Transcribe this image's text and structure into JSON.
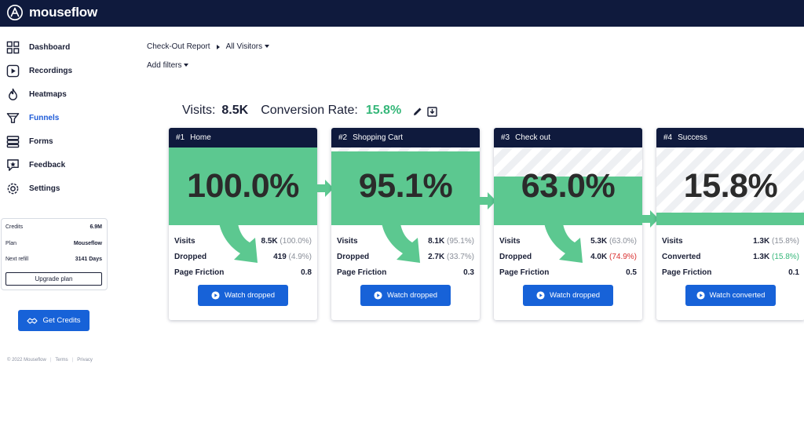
{
  "app": {
    "name": "mouseflow"
  },
  "sidebar": {
    "items": [
      {
        "label": "Dashboard",
        "icon": "dashboard-icon",
        "active": false
      },
      {
        "label": "Recordings",
        "icon": "recordings-icon",
        "active": false
      },
      {
        "label": "Heatmaps",
        "icon": "heatmaps-icon",
        "active": false
      },
      {
        "label": "Funnels",
        "icon": "funnels-icon",
        "active": true
      },
      {
        "label": "Forms",
        "icon": "forms-icon",
        "active": false
      },
      {
        "label": "Feedback",
        "icon": "feedback-icon",
        "active": false
      },
      {
        "label": "Settings",
        "icon": "settings-icon",
        "active": false
      }
    ],
    "credits": {
      "rows": [
        {
          "label": "Credits",
          "value": "6.9M"
        },
        {
          "label": "Plan",
          "value": "Mouseflow"
        },
        {
          "label": "Next refill",
          "value": "3141 Days"
        }
      ],
      "upgrade_label": "Upgrade plan"
    },
    "get_credits_label": "Get Credits",
    "footer": {
      "copyright": "© 2022 Mouseflow",
      "terms": "Terms",
      "privacy": "Privacy"
    }
  },
  "header": {
    "report": "Check-Out Report",
    "segment": "All Visitors",
    "add_filters": "Add filters"
  },
  "summary": {
    "visits_label": "Visits:",
    "visits_value": "8.5K",
    "rate_label": "Conversion Rate:",
    "rate_value": "15.8%"
  },
  "colors": {
    "accent": "#1762d8",
    "header": "#0f1a3d",
    "bar_green": "#5cc890",
    "rate_green": "#35b779",
    "drop_red": "#d93030"
  },
  "steps": [
    {
      "num": "#1",
      "name": "Home",
      "pct": "100.0%",
      "level": 100.0,
      "rows": [
        {
          "label": "Visits",
          "value": "8.5K",
          "sub": "(100.0%)",
          "sub_color": "gray"
        },
        {
          "label": "Dropped",
          "value": "419",
          "sub": "(4.9%)",
          "sub_color": "gray"
        },
        {
          "label": "Page Friction",
          "value": "0.8",
          "sub": "",
          "sub_color": "gray"
        }
      ],
      "button": "Watch dropped",
      "drop_arrow": true
    },
    {
      "num": "#2",
      "name": "Shopping Cart",
      "pct": "95.1%",
      "level": 95.1,
      "rows": [
        {
          "label": "Visits",
          "value": "8.1K",
          "sub": "(95.1%)",
          "sub_color": "gray"
        },
        {
          "label": "Dropped",
          "value": "2.7K",
          "sub": "(33.7%)",
          "sub_color": "gray"
        },
        {
          "label": "Page Friction",
          "value": "0.3",
          "sub": "",
          "sub_color": "gray"
        }
      ],
      "button": "Watch dropped",
      "drop_arrow": true
    },
    {
      "num": "#3",
      "name": "Check out",
      "pct": "63.0%",
      "level": 63.0,
      "rows": [
        {
          "label": "Visits",
          "value": "5.3K",
          "sub": "(63.0%)",
          "sub_color": "gray"
        },
        {
          "label": "Dropped",
          "value": "4.0K",
          "sub": "(74.9%)",
          "sub_color": "red"
        },
        {
          "label": "Page Friction",
          "value": "0.5",
          "sub": "",
          "sub_color": "gray"
        }
      ],
      "button": "Watch dropped",
      "drop_arrow": true
    },
    {
      "num": "#4",
      "name": "Success",
      "pct": "15.8%",
      "level": 15.8,
      "rows": [
        {
          "label": "Visits",
          "value": "1.3K",
          "sub": "(15.8%)",
          "sub_color": "gray"
        },
        {
          "label": "Converted",
          "value": "1.3K",
          "sub": "(15.8%)",
          "sub_color": "green"
        },
        {
          "label": "Page Friction",
          "value": "0.1",
          "sub": "",
          "sub_color": "gray"
        }
      ],
      "button": "Watch converted",
      "drop_arrow": false
    }
  ]
}
